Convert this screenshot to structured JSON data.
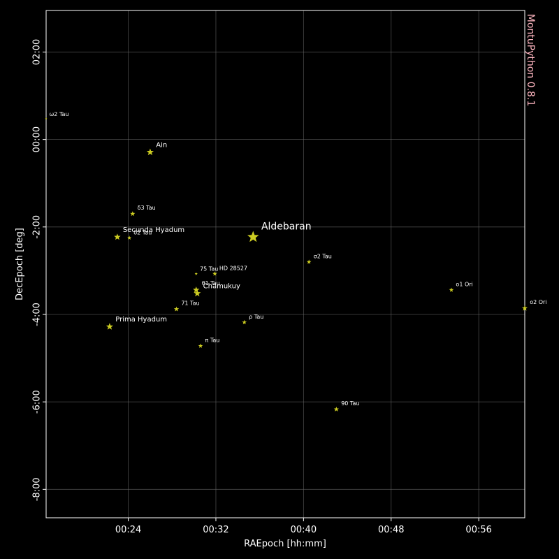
{
  "chart_data": {
    "type": "scatter",
    "xlabel": "RAEpoch [hh:mm]",
    "ylabel": "DecEpoch [deg]",
    "watermark": "MontuPython 0.8.1",
    "xlim_minutes": [
      16.5,
      60.2
    ],
    "ylim_deg": [
      -8.65,
      2.95
    ],
    "x_ticks": [
      {
        "value": 24,
        "label": "00:24"
      },
      {
        "value": 32,
        "label": "00:32"
      },
      {
        "value": 40,
        "label": "00:40"
      },
      {
        "value": 48,
        "label": "00:48"
      },
      {
        "value": 56,
        "label": "00:56"
      }
    ],
    "y_ticks": [
      {
        "value": 2,
        "label": "02:00"
      },
      {
        "value": 0,
        "label": "00:00"
      },
      {
        "value": -2,
        "label": "-2:00"
      },
      {
        "value": -4,
        "label": "-4:00"
      },
      {
        "value": -6,
        "label": "-6:00"
      },
      {
        "value": -8,
        "label": "-8:00"
      }
    ],
    "grid": true,
    "colors": {
      "background": "#000000",
      "star": "#cccc22",
      "label": "#ffffff",
      "grid": "#666666",
      "watermark": "#ffb6c1"
    },
    "stars": [
      {
        "name": "ω2 Tau",
        "ra_min": 16.5,
        "dec_deg": 0.48,
        "size": 0.05,
        "label_size": "tiny"
      },
      {
        "name": "Ain",
        "ra_min": 26.0,
        "dec_deg": -0.29,
        "size": 0.55,
        "label_size": "small"
      },
      {
        "name": "δ3 Tau",
        "ra_min": 24.4,
        "dec_deg": -1.7,
        "size": 0.35,
        "label_size": "tiny"
      },
      {
        "name": "Secunda Hyadum",
        "ra_min": 23.0,
        "dec_deg": -2.23,
        "size": 0.5,
        "label_size": "small"
      },
      {
        "name": "δ2 Tau",
        "ra_min": 24.1,
        "dec_deg": -2.25,
        "size": 0.25,
        "label_size": "tiny"
      },
      {
        "name": "Aldebaran",
        "ra_min": 35.4,
        "dec_deg": -2.23,
        "size": 1.0,
        "label_size": "large"
      },
      {
        "name": "σ2 Tau",
        "ra_min": 40.5,
        "dec_deg": -2.8,
        "size": 0.3,
        "label_size": "tiny"
      },
      {
        "name": "75 Tau",
        "ra_min": 30.2,
        "dec_deg": -3.07,
        "size": 0.15,
        "label_size": "tiny"
      },
      {
        "name": "HD 28527",
        "ra_min": 31.9,
        "dec_deg": -3.07,
        "size": 0.3,
        "label_size": "tiny"
      },
      {
        "name": "θ1 Tau",
        "ra_min": 30.2,
        "dec_deg": -3.44,
        "size": 0.5,
        "label_size": "tiny"
      },
      {
        "name": "Chamukuy",
        "ra_min": 30.3,
        "dec_deg": -3.52,
        "size": 0.55,
        "label_size": "small"
      },
      {
        "name": "71 Tau",
        "ra_min": 28.4,
        "dec_deg": -3.88,
        "size": 0.35,
        "label_size": "tiny"
      },
      {
        "name": "Prima Hyadum",
        "ra_min": 22.3,
        "dec_deg": -4.28,
        "size": 0.55,
        "label_size": "small"
      },
      {
        "name": "ρ Tau",
        "ra_min": 34.6,
        "dec_deg": -4.18,
        "size": 0.3,
        "label_size": "tiny"
      },
      {
        "name": "π Tau",
        "ra_min": 30.6,
        "dec_deg": -4.72,
        "size": 0.3,
        "label_size": "tiny"
      },
      {
        "name": "ο1 Ori",
        "ra_min": 53.5,
        "dec_deg": -3.44,
        "size": 0.3,
        "label_size": "tiny"
      },
      {
        "name": "ο2 Ori",
        "ra_min": 60.2,
        "dec_deg": -3.86,
        "size": 0.4,
        "label_size": "tiny"
      },
      {
        "name": "90 Tau",
        "ra_min": 43.0,
        "dec_deg": -6.17,
        "size": 0.35,
        "label_size": "tiny"
      }
    ]
  }
}
